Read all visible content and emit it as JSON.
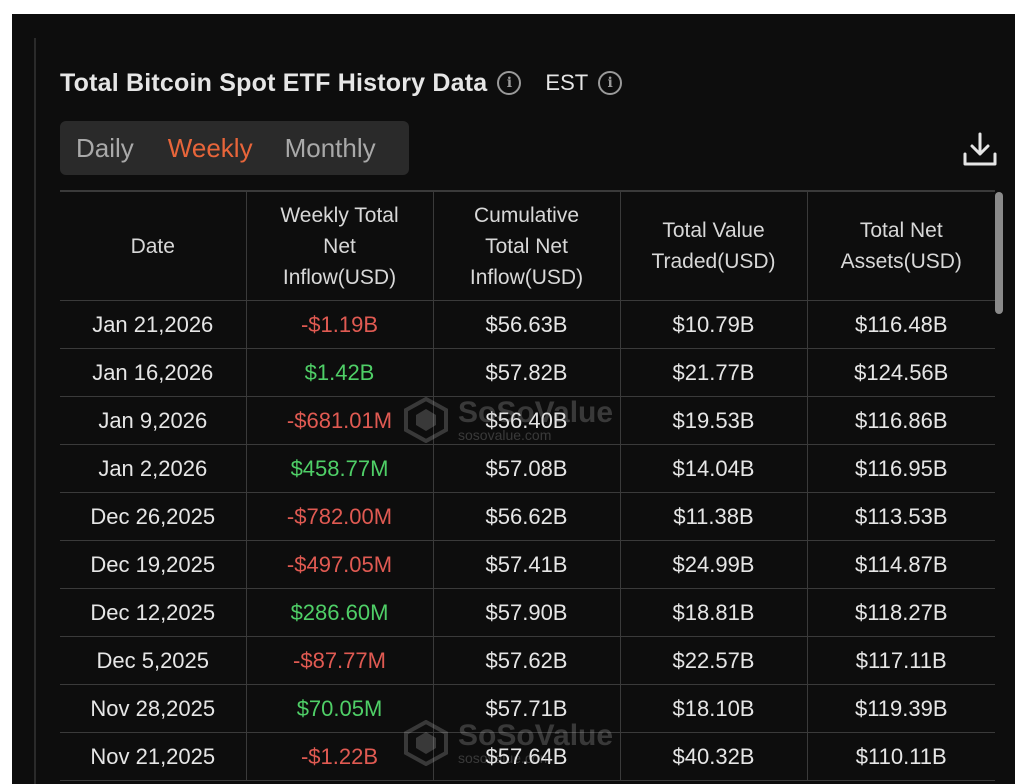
{
  "header": {
    "title": "Total Bitcoin Spot ETF History Data",
    "timezone": "EST",
    "info_icon": "info-icon",
    "tz_info_icon": "info-icon"
  },
  "tabs": {
    "items": [
      "Daily",
      "Weekly",
      "Monthly"
    ],
    "selected": "Weekly"
  },
  "toolbar": {
    "download_icon": "download-icon"
  },
  "table": {
    "headers": [
      [
        "Date"
      ],
      [
        "Weekly Total",
        "Net",
        "Inflow(USD)"
      ],
      [
        "Cumulative",
        "Total Net",
        "Inflow(USD)"
      ],
      [
        "Total Value",
        "Traded(USD)"
      ],
      [
        "Total Net",
        "Assets(USD)"
      ]
    ],
    "rows": [
      [
        "Jan 21,2026",
        "-$1.19B",
        "$56.63B",
        "$10.79B",
        "$116.48B"
      ],
      [
        "Jan 16,2026",
        "$1.42B",
        "$57.82B",
        "$21.77B",
        "$124.56B"
      ],
      [
        "Jan 9,2026",
        "-$681.01M",
        "$56.40B",
        "$19.53B",
        "$116.86B"
      ],
      [
        "Jan 2,2026",
        "$458.77M",
        "$57.08B",
        "$14.04B",
        "$116.95B"
      ],
      [
        "Dec 26,2025",
        "-$782.00M",
        "$56.62B",
        "$11.38B",
        "$113.53B"
      ],
      [
        "Dec 19,2025",
        "-$497.05M",
        "$57.41B",
        "$24.99B",
        "$114.87B"
      ],
      [
        "Dec 12,2025",
        "$286.60M",
        "$57.90B",
        "$18.81B",
        "$118.27B"
      ],
      [
        "Dec 5,2025",
        "-$87.77M",
        "$57.62B",
        "$22.57B",
        "$117.11B"
      ],
      [
        "Nov 28,2025",
        "$70.05M",
        "$57.71B",
        "$18.10B",
        "$119.39B"
      ],
      [
        "Nov 21,2025",
        "-$1.22B",
        "$57.64B",
        "$40.32B",
        "$110.11B"
      ]
    ]
  },
  "watermark": {
    "brand": "SoSoValue",
    "site": "sosovalue.com"
  },
  "colors": {
    "negative": "#e05a52",
    "positive": "#4fcf67",
    "accent": "#e8653a",
    "background": "#0d0d0d"
  }
}
